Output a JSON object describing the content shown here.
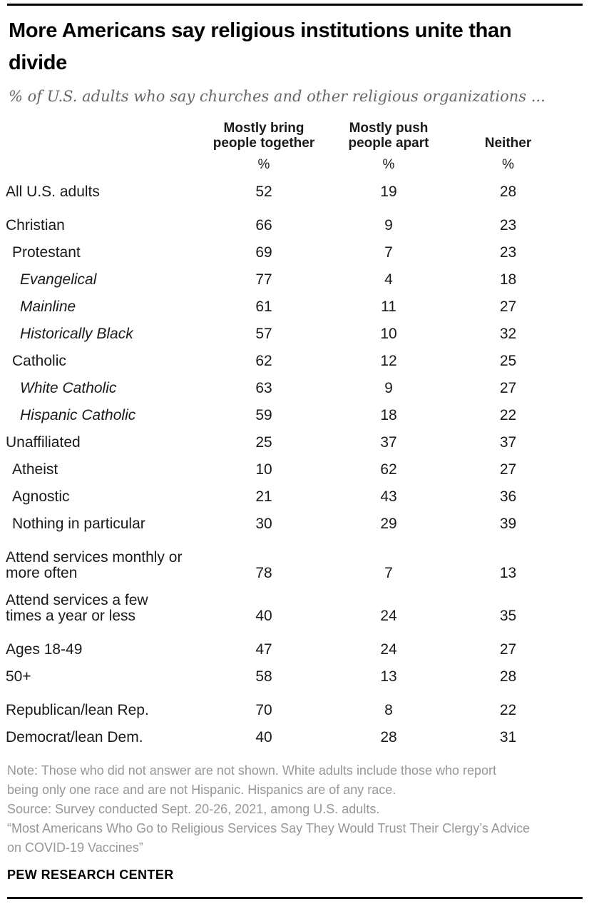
{
  "chart_data": {
    "type": "table",
    "title": "More Americans say religious institutions unite than divide",
    "subtitle": "% of U.S. adults who say churches and other religious organizations ...",
    "columns": [
      "Mostly bring\npeople together",
      "Mostly push\npeople apart",
      "Neither"
    ],
    "unit": "%",
    "rows": [
      {
        "label": "All U.S. adults",
        "indent": 0,
        "italic": false,
        "group_start": false,
        "values": [
          52,
          19,
          28
        ]
      },
      {
        "label": "Christian",
        "indent": 0,
        "italic": false,
        "group_start": true,
        "values": [
          66,
          9,
          23
        ]
      },
      {
        "label": "Protestant",
        "indent": 1,
        "italic": false,
        "group_start": false,
        "values": [
          69,
          7,
          23
        ]
      },
      {
        "label": "Evangelical",
        "indent": 2,
        "italic": true,
        "group_start": false,
        "values": [
          77,
          4,
          18
        ]
      },
      {
        "label": "Mainline",
        "indent": 2,
        "italic": true,
        "group_start": false,
        "values": [
          61,
          11,
          27
        ]
      },
      {
        "label": "Historically Black",
        "indent": 2,
        "italic": true,
        "group_start": false,
        "values": [
          57,
          10,
          32
        ]
      },
      {
        "label": "Catholic",
        "indent": 1,
        "italic": false,
        "group_start": false,
        "values": [
          62,
          12,
          25
        ]
      },
      {
        "label": "White Catholic",
        "indent": 2,
        "italic": true,
        "group_start": false,
        "values": [
          63,
          9,
          27
        ]
      },
      {
        "label": "Hispanic Catholic",
        "indent": 2,
        "italic": true,
        "group_start": false,
        "values": [
          59,
          18,
          22
        ]
      },
      {
        "label": "Unaffiliated",
        "indent": 0,
        "italic": false,
        "group_start": false,
        "values": [
          25,
          37,
          37
        ]
      },
      {
        "label": "Atheist",
        "indent": 1,
        "italic": false,
        "group_start": false,
        "values": [
          10,
          62,
          27
        ]
      },
      {
        "label": "Agnostic",
        "indent": 1,
        "italic": false,
        "group_start": false,
        "values": [
          21,
          43,
          36
        ]
      },
      {
        "label": "Nothing in particular",
        "indent": 1,
        "italic": false,
        "group_start": false,
        "values": [
          30,
          29,
          39
        ]
      },
      {
        "label": "Attend services monthly or\nmore often",
        "indent": 0,
        "italic": false,
        "group_start": true,
        "values": [
          78,
          7,
          13
        ]
      },
      {
        "label": "Attend services a few\ntimes a year or less",
        "indent": 0,
        "italic": false,
        "group_start": false,
        "values": [
          40,
          24,
          35
        ]
      },
      {
        "label": "Ages 18-49",
        "indent": 0,
        "italic": false,
        "group_start": true,
        "values": [
          47,
          24,
          27
        ]
      },
      {
        "label": "50+",
        "indent": 0,
        "italic": false,
        "group_start": false,
        "values": [
          58,
          13,
          28
        ]
      },
      {
        "label": "Republican/lean Rep.",
        "indent": 0,
        "italic": false,
        "group_start": true,
        "values": [
          70,
          8,
          22
        ]
      },
      {
        "label": "Democrat/lean Dem.",
        "indent": 0,
        "italic": false,
        "group_start": false,
        "values": [
          40,
          28,
          31
        ]
      }
    ],
    "layout": {
      "legend": "none",
      "grid": false
    }
  },
  "footer": {
    "note": "Note: Those who did not answer are not shown. White adults include those who report\nbeing only one race and are not Hispanic. Hispanics are of any race.",
    "source": "Source: Survey conducted Sept. 20-26, 2021, among U.S. adults.",
    "report": "“Most Americans Who Go to Religious Services Say They Would Trust Their Clergy’s Advice\non COVID-19 Vaccines”",
    "brand": "PEW RESEARCH CENTER"
  },
  "colors": {
    "rule": "#000000",
    "title_text": "#000000",
    "subtitle_text": "#666666",
    "table_text": "#1a1a1a",
    "note_text": "#979797"
  }
}
